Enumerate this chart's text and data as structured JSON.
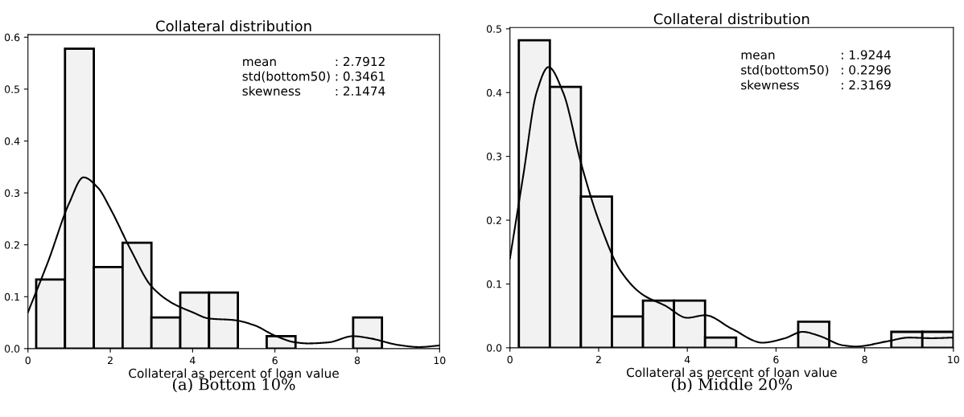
{
  "chart_data": [
    {
      "type": "histogram",
      "title": "Collateral distribution",
      "xlabel": "Collateral as percent of loan value",
      "bins": [
        0.2,
        0.9,
        1.6,
        2.3,
        3.0,
        3.7,
        4.4,
        5.1,
        5.8,
        6.5,
        7.2,
        7.9,
        8.6
      ],
      "values": [
        0.133,
        0.578,
        0.157,
        0.204,
        0.06,
        0.108,
        0.108,
        null,
        0.024,
        null,
        null,
        0.06
      ],
      "color": "#f2f2f2",
      "series": [
        {
          "type": "line",
          "color": "#000000",
          "x": [
            0,
            0.5,
            1.0,
            1.35,
            1.7,
            2.0,
            2.5,
            3.0,
            3.5,
            4.0,
            4.4,
            5.0,
            5.5,
            6.0,
            6.5,
            6.8,
            7.3,
            7.9,
            8.3,
            9.0,
            9.5,
            10
          ],
          "values": [
            0.07,
            0.17,
            0.28,
            0.33,
            0.31,
            0.27,
            0.19,
            0.12,
            0.088,
            0.07,
            0.058,
            0.055,
            0.045,
            0.025,
            0.012,
            0.01,
            0.012,
            0.024,
            0.02,
            0.007,
            0.003,
            0.006
          ]
        }
      ],
      "xlim": [
        0,
        10
      ],
      "xticks": [
        0,
        2,
        4,
        6,
        8,
        10
      ],
      "ylim": [
        0,
        0.605
      ],
      "yticks": [
        {
          "value": 0,
          "label": "0.0"
        },
        0.1,
        0.2,
        0.3,
        0.4,
        0.5,
        0.6
      ],
      "annotations": [
        "mean : 2.7912",
        "std(bottom50) : 0.3461",
        "skewness : 2.1474",
        "(a) Bottom 10%"
      ]
    },
    {
      "type": "histogram",
      "title": "Collateral distribution",
      "xlabel": "Collateral as percent of loan value",
      "bins": [
        0.2,
        0.9,
        1.6,
        2.3,
        3.0,
        3.7,
        4.4,
        5.1,
        5.8,
        6.5,
        7.2,
        7.9,
        8.6,
        9.3,
        10.0
      ],
      "values": [
        0.482,
        0.409,
        0.237,
        0.049,
        0.074,
        0.074,
        0.016,
        null,
        null,
        0.041,
        null,
        null,
        0.025,
        0.025
      ],
      "color": "#f2f2f2",
      "series": [
        {
          "type": "line",
          "color": "#000000",
          "x": [
            0,
            0.3,
            0.6,
            0.87,
            1.2,
            1.6,
            2.0,
            2.5,
            3.0,
            3.5,
            4.0,
            4.4,
            5.0,
            5.7,
            6.2,
            6.6,
            7.0,
            7.5,
            7.8,
            8.5,
            9.0,
            9.5,
            10
          ],
          "values": [
            0.14,
            0.27,
            0.4,
            0.44,
            0.4,
            0.29,
            0.2,
            0.12,
            0.083,
            0.066,
            0.047,
            0.051,
            0.03,
            0.008,
            0.015,
            0.025,
            0.018,
            0.004,
            0.002,
            0.01,
            0.016,
            0.015,
            0.016
          ]
        }
      ],
      "xlim": [
        0,
        10
      ],
      "xticks": [
        0,
        2,
        4,
        6,
        8,
        10
      ],
      "ylim": [
        0,
        0.502
      ],
      "yticks": [
        {
          "value": 0,
          "label": "0.0"
        },
        0.1,
        0.2,
        0.3,
        0.4,
        0.5
      ],
      "annotations": [
        "mean : 1.9244",
        "std(bottom50) : 0.2296",
        "skewness : 2.3169",
        "(b) Middle 20%"
      ]
    }
  ]
}
